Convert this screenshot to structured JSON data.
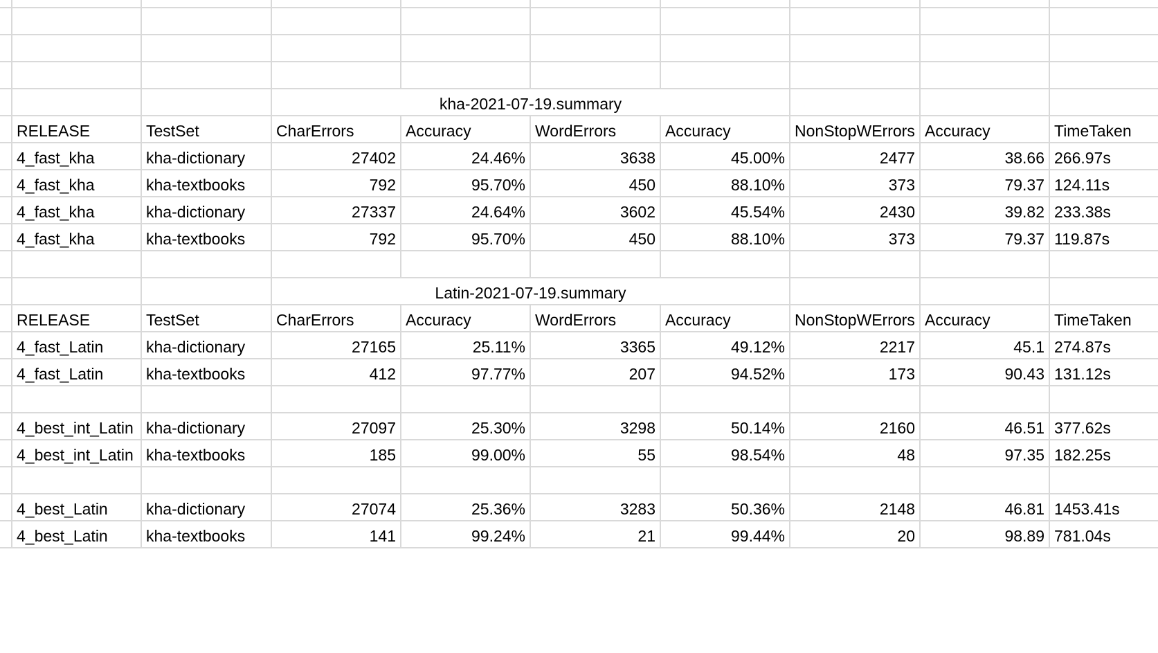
{
  "sheet": {
    "blocks": [
      {
        "title": "kha-2021-07-19.summary",
        "headers": [
          "RELEASE",
          "TestSet",
          "CharErrors",
          "Accuracy",
          "WordErrors",
          "Accuracy",
          "NonStopWErrors",
          "Accuracy",
          "TimeTaken"
        ],
        "rows": [
          [
            "4_fast_kha",
            "kha-dictionary",
            "27402",
            "24.46%",
            "3638",
            "45.00%",
            "2477",
            "38.66",
            "266.97s"
          ],
          [
            "4_fast_kha",
            "kha-textbooks",
            "792",
            "95.70%",
            "450",
            "88.10%",
            "373",
            "79.37",
            "124.11s"
          ],
          [
            "4_fast_kha",
            "kha-dictionary",
            "27337",
            "24.64%",
            "3602",
            "45.54%",
            "2430",
            "39.82",
            "233.38s"
          ],
          [
            "4_fast_kha",
            "kha-textbooks",
            "792",
            "95.70%",
            "450",
            "88.10%",
            "373",
            "79.37",
            "119.87s"
          ]
        ]
      },
      {
        "title": "Latin-2021-07-19.summary",
        "headers": [
          "RELEASE",
          "TestSet",
          "CharErrors",
          "Accuracy",
          "WordErrors",
          "Accuracy",
          "NonStopWErrors",
          "Accuracy",
          "TimeTaken"
        ],
        "groups": [
          [
            [
              "4_fast_Latin",
              "kha-dictionary",
              "27165",
              "25.11%",
              "3365",
              "49.12%",
              "2217",
              "45.1",
              "274.87s"
            ],
            [
              "4_fast_Latin",
              "kha-textbooks",
              "412",
              "97.77%",
              "207",
              "94.52%",
              "173",
              "90.43",
              "131.12s"
            ]
          ],
          [
            [
              "4_best_int_Latin",
              "kha-dictionary",
              "27097",
              "25.30%",
              "3298",
              "50.14%",
              "2160",
              "46.51",
              "377.62s"
            ],
            [
              "4_best_int_Latin",
              "kha-textbooks",
              "185",
              "99.00%",
              "55",
              "98.54%",
              "48",
              "97.35",
              "182.25s"
            ]
          ],
          [
            [
              "4_best_Latin",
              "kha-dictionary",
              "27074",
              "25.36%",
              "3283",
              "50.36%",
              "2148",
              "46.81",
              "1453.41s"
            ],
            [
              "4_best_Latin",
              "kha-textbooks",
              "141",
              "99.24%",
              "21",
              "99.44%",
              "20",
              "98.89",
              "781.04s"
            ]
          ]
        ]
      }
    ]
  }
}
